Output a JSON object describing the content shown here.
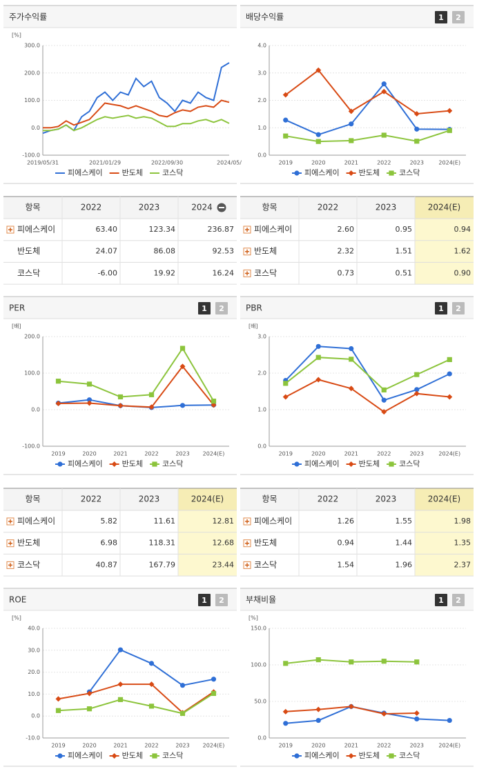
{
  "chart_data": [
    {
      "type": "line",
      "title": "주가수익률",
      "y_unit": "[%]",
      "categories": [
        "2019/05/31",
        null,
        null,
        null,
        null,
        null,
        null,
        null,
        "2021/01/29",
        null,
        null,
        null,
        null,
        null,
        null,
        null,
        "2022/09/30",
        null,
        null,
        null,
        null,
        null,
        null,
        null,
        "2024/05/"
      ],
      "ylim": [
        -100,
        300
      ],
      "yticks": [
        {
          "value": -100,
          "label": "-100.0"
        },
        {
          "value": 0,
          "label": "0.0"
        },
        {
          "value": 100,
          "label": "100.0"
        },
        {
          "value": 200,
          "label": "200.0"
        },
        {
          "value": 300,
          "label": "300.0"
        }
      ],
      "series": [
        {
          "name": "피에스케이",
          "color": "#2f6fd6",
          "marker": "none",
          "values": [
            -20,
            -10,
            -5,
            10,
            -10,
            40,
            60,
            110,
            130,
            100,
            130,
            120,
            180,
            150,
            170,
            110,
            90,
            60,
            100,
            90,
            130,
            110,
            100,
            220,
            237
          ]
        },
        {
          "name": "반도체",
          "color": "#d84a14",
          "marker": "none",
          "values": [
            0,
            0,
            5,
            25,
            10,
            20,
            30,
            60,
            90,
            85,
            80,
            70,
            80,
            70,
            60,
            45,
            40,
            55,
            65,
            60,
            75,
            80,
            75,
            100,
            93
          ]
        },
        {
          "name": "코스닥",
          "color": "#8cc43c",
          "marker": "none",
          "values": [
            -10,
            -10,
            -5,
            10,
            -10,
            0,
            15,
            30,
            40,
            35,
            40,
            45,
            35,
            40,
            35,
            20,
            5,
            5,
            15,
            15,
            25,
            30,
            20,
            30,
            16
          ]
        }
      ]
    },
    {
      "type": "line",
      "title": "배당수익률",
      "pages": [
        "1",
        "2"
      ],
      "categories": [
        "2019",
        "2020",
        "2021",
        "2022",
        "2023",
        "2024(E)"
      ],
      "ylim": [
        0,
        4
      ],
      "yticks": [
        {
          "value": 0,
          "label": "0.0"
        },
        {
          "value": 1,
          "label": "1.0"
        },
        {
          "value": 2,
          "label": "2.0"
        },
        {
          "value": 3,
          "label": "3.0"
        },
        {
          "value": 4,
          "label": "4.0"
        }
      ],
      "series": [
        {
          "name": "피에스케이",
          "color": "#2f6fd6",
          "marker": "circle",
          "values": [
            1.28,
            0.75,
            1.14,
            2.6,
            0.95,
            0.94
          ]
        },
        {
          "name": "반도체",
          "color": "#d84a14",
          "marker": "diamond",
          "values": [
            2.2,
            3.1,
            1.6,
            2.32,
            1.51,
            1.62
          ]
        },
        {
          "name": "코스닥",
          "color": "#8cc43c",
          "marker": "square",
          "values": [
            0.7,
            0.5,
            0.53,
            0.73,
            0.51,
            0.9
          ]
        }
      ]
    },
    {
      "type": "line",
      "title": "PER",
      "pages": [
        "1",
        "2"
      ],
      "y_unit": "[배]",
      "categories": [
        "2019",
        "2020",
        "2021",
        "2022",
        "2023",
        "2024(E)"
      ],
      "ylim": [
        -100,
        200
      ],
      "yticks": [
        {
          "value": -100,
          "label": "-100.0"
        },
        {
          "value": 0,
          "label": "0.0"
        },
        {
          "value": 100,
          "label": "100.0"
        },
        {
          "value": 200,
          "label": "200.0"
        }
      ],
      "series": [
        {
          "name": "피에스케이",
          "color": "#2f6fd6",
          "marker": "circle",
          "values": [
            18,
            27,
            11,
            5.82,
            11.61,
            12.81
          ]
        },
        {
          "name": "반도체",
          "color": "#d84a14",
          "marker": "diamond",
          "values": [
            17,
            18,
            11,
            6.98,
            118.31,
            12.68
          ]
        },
        {
          "name": "코스닥",
          "color": "#8cc43c",
          "marker": "square",
          "values": [
            78,
            70,
            35,
            40.87,
            167.79,
            23.44
          ]
        }
      ]
    },
    {
      "type": "line",
      "title": "PBR",
      "pages": [
        "1",
        "2"
      ],
      "y_unit": "[배]",
      "categories": [
        "2019",
        "2020",
        "2021",
        "2022",
        "2023",
        "2024(E)"
      ],
      "ylim": [
        0,
        3
      ],
      "yticks": [
        {
          "value": 0,
          "label": "0.0"
        },
        {
          "value": 1,
          "label": "1.0"
        },
        {
          "value": 2,
          "label": "2.0"
        },
        {
          "value": 3,
          "label": "3.0"
        }
      ],
      "series": [
        {
          "name": "피에스케이",
          "color": "#2f6fd6",
          "marker": "circle",
          "values": [
            1.8,
            2.73,
            2.67,
            1.26,
            1.55,
            1.98
          ]
        },
        {
          "name": "반도체",
          "color": "#d84a14",
          "marker": "diamond",
          "values": [
            1.35,
            1.82,
            1.58,
            0.94,
            1.44,
            1.35
          ]
        },
        {
          "name": "코스닥",
          "color": "#8cc43c",
          "marker": "square",
          "values": [
            1.72,
            2.43,
            2.38,
            1.54,
            1.96,
            2.37
          ]
        }
      ]
    },
    {
      "type": "line",
      "title": "ROE",
      "pages": [
        "1",
        "2"
      ],
      "y_unit": "[%]",
      "categories": [
        "2019",
        "2020",
        "2021",
        "2022",
        "2023",
        "2024(E)"
      ],
      "ylim": [
        -10,
        40
      ],
      "yticks": [
        {
          "value": -10,
          "label": "-10.0"
        },
        {
          "value": 0,
          "label": "0.0"
        },
        {
          "value": 10,
          "label": "10.0"
        },
        {
          "value": 20,
          "label": "20.0"
        },
        {
          "value": 30,
          "label": "30.0"
        },
        {
          "value": 40,
          "label": "40.0"
        }
      ],
      "series": [
        {
          "name": "피에스케이",
          "color": "#2f6fd6",
          "marker": "circle",
          "values": [
            null,
            11,
            30.2,
            24,
            14,
            16.8
          ]
        },
        {
          "name": "반도체",
          "color": "#d84a14",
          "marker": "diamond",
          "values": [
            7.8,
            10.3,
            14.5,
            14.5,
            1.5,
            11
          ]
        },
        {
          "name": "코스닥",
          "color": "#8cc43c",
          "marker": "square",
          "values": [
            2.5,
            3.3,
            7.5,
            4.5,
            1.2,
            10.3
          ]
        }
      ]
    },
    {
      "type": "line",
      "title": "부채비율",
      "pages": [
        "1",
        "2"
      ],
      "y_unit": "[%]",
      "categories": [
        "2019",
        "2020",
        "2021",
        "2022",
        "2023",
        "2024(E)"
      ],
      "ylim": [
        0,
        150
      ],
      "yticks": [
        {
          "value": 0,
          "label": "0.0"
        },
        {
          "value": 50,
          "label": "50.0"
        },
        {
          "value": 100,
          "label": "100.0"
        },
        {
          "value": 150,
          "label": "150.0"
        }
      ],
      "series": [
        {
          "name": "피에스케이",
          "color": "#2f6fd6",
          "marker": "circle",
          "values": [
            20,
            24,
            43,
            34,
            26,
            24
          ]
        },
        {
          "name": "반도체",
          "color": "#d84a14",
          "marker": "diamond",
          "values": [
            36,
            39,
            43,
            33,
            34,
            null
          ]
        },
        {
          "name": "코스닥",
          "color": "#8cc43c",
          "marker": "square",
          "values": [
            102,
            107,
            104,
            105,
            104,
            null
          ]
        }
      ]
    }
  ],
  "tables": [
    {
      "header": [
        "항목",
        "2022",
        "2023",
        "2024"
      ],
      "rows": [
        {
          "name": "피에스케이",
          "values": [
            "63.40",
            "123.34",
            "236.87"
          ]
        },
        {
          "name": "반도체",
          "values": [
            "24.07",
            "86.08",
            "92.53"
          ]
        },
        {
          "name": "코스닥",
          "values": [
            "-6.00",
            "19.92",
            "16.24"
          ]
        }
      ]
    },
    {
      "header": [
        "항목",
        "2022",
        "2023",
        "2024(E)"
      ],
      "rows": [
        {
          "name": "피에스케이",
          "values": [
            "2.60",
            "0.95",
            "0.94"
          ]
        },
        {
          "name": "반도체",
          "values": [
            "2.32",
            "1.51",
            "1.62"
          ]
        },
        {
          "name": "코스닥",
          "values": [
            "0.73",
            "0.51",
            "0.90"
          ]
        }
      ]
    },
    {
      "header": [
        "항목",
        "2022",
        "2023",
        "2024(E)"
      ],
      "rows": [
        {
          "name": "피에스케이",
          "values": [
            "5.82",
            "11.61",
            "12.81"
          ]
        },
        {
          "name": "반도체",
          "values": [
            "6.98",
            "118.31",
            "12.68"
          ]
        },
        {
          "name": "코스닥",
          "values": [
            "40.87",
            "167.79",
            "23.44"
          ]
        }
      ]
    },
    {
      "header": [
        "항목",
        "2022",
        "2023",
        "2024(E)"
      ],
      "rows": [
        {
          "name": "피에스케이",
          "values": [
            "1.26",
            "1.55",
            "1.98"
          ]
        },
        {
          "name": "반도체",
          "values": [
            "0.94",
            "1.44",
            "1.35"
          ]
        },
        {
          "name": "코스닥",
          "values": [
            "1.54",
            "1.96",
            "2.37"
          ]
        }
      ]
    }
  ]
}
